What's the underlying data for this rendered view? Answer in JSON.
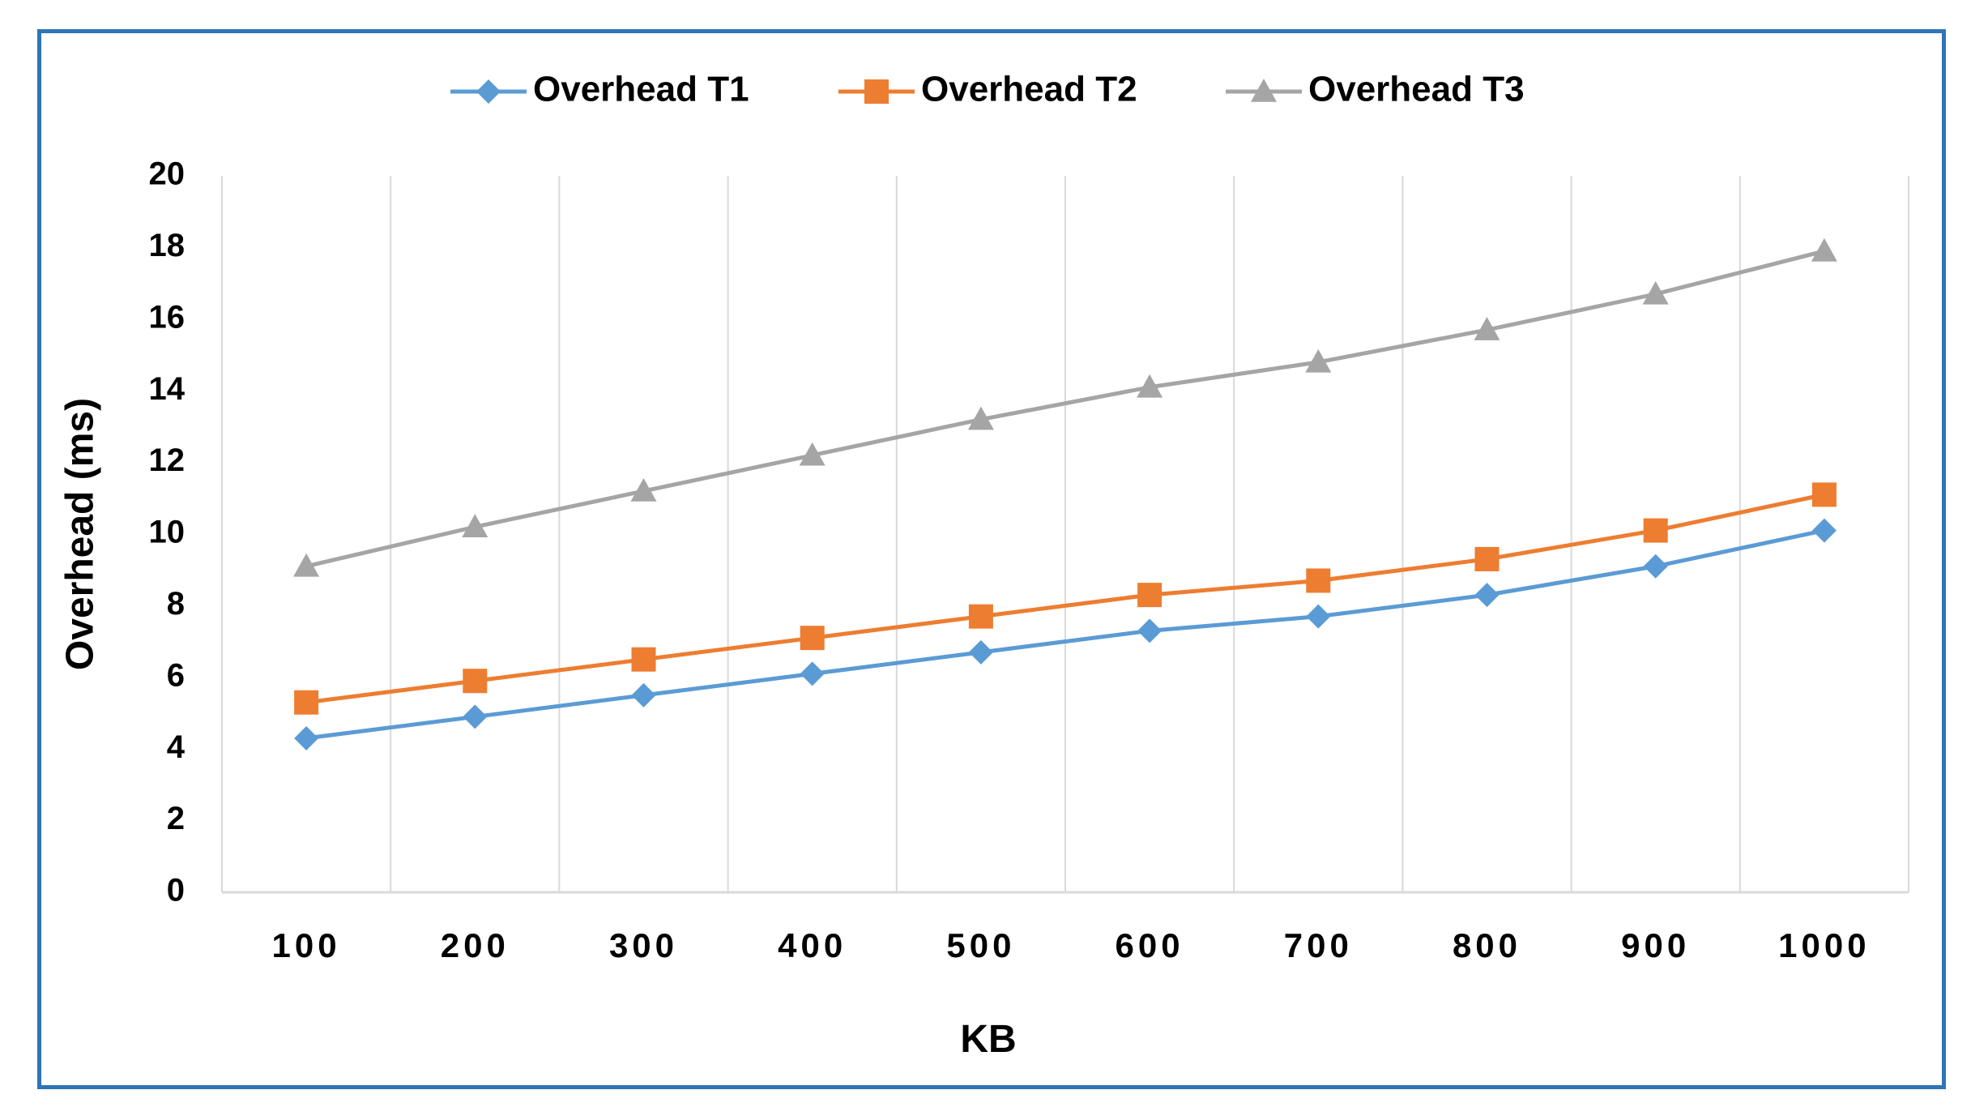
{
  "chart_data": {
    "type": "line",
    "title": "",
    "xlabel": "KB",
    "ylabel": "Overhead (ms)",
    "categories": [
      "100",
      "200",
      "300",
      "400",
      "500",
      "600",
      "700",
      "800",
      "900",
      "1000"
    ],
    "ylim": [
      0,
      20
    ],
    "yticks": [
      "0",
      "2",
      "4",
      "6",
      "8",
      "10",
      "12",
      "14",
      "16",
      "18",
      "20"
    ],
    "grid": "vertical",
    "legend_position": "top-center",
    "series": [
      {
        "name": "Overhead T1",
        "color": "#5b9bd5",
        "marker": "diamond",
        "values": [
          4.3,
          4.9,
          5.5,
          6.1,
          6.7,
          7.3,
          7.7,
          8.3,
          9.1,
          10.1
        ]
      },
      {
        "name": "Overhead T2",
        "color": "#ed7d31",
        "marker": "square",
        "values": [
          5.3,
          5.9,
          6.5,
          7.1,
          7.7,
          8.3,
          8.7,
          9.3,
          10.1,
          11.1
        ]
      },
      {
        "name": "Overhead T3",
        "color": "#a5a5a5",
        "marker": "triangle",
        "values": [
          9.1,
          10.2,
          11.2,
          12.2,
          13.2,
          14.1,
          14.8,
          15.7,
          16.7,
          17.9
        ]
      }
    ]
  },
  "colors": {
    "frame_border": "#2e75b6",
    "gridline": "#d9d9d9",
    "axis_line": "#d9d9d9"
  }
}
